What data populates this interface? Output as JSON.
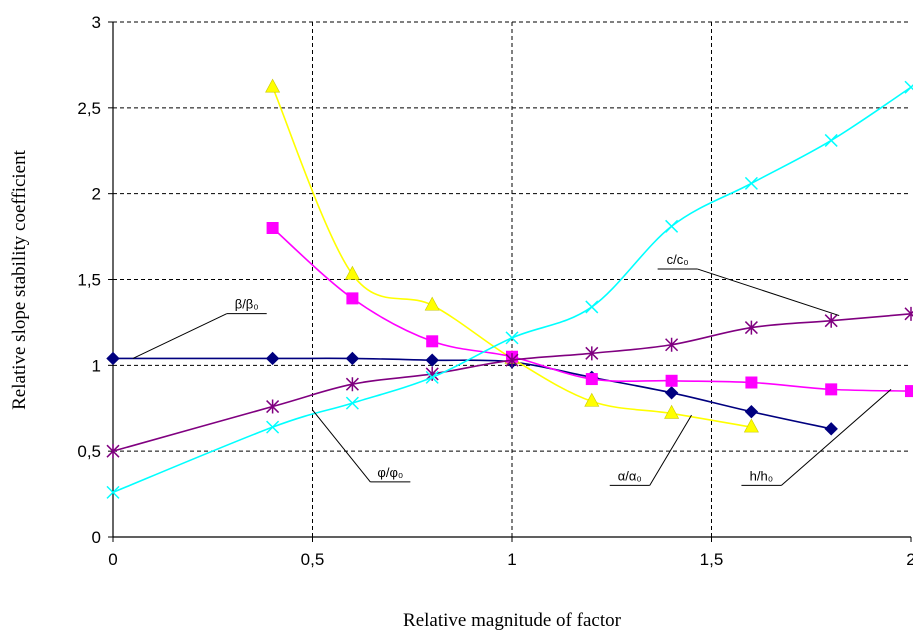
{
  "chart_data": {
    "type": "line",
    "title": "",
    "xlabel": "Relative magnitude of factor",
    "ylabel": "Relative slope stability coefficient",
    "xlim": [
      0,
      2
    ],
    "ylim": [
      0,
      3
    ],
    "grid": true,
    "x_ticks": [
      "0",
      "0,5",
      "1",
      "1,5",
      "2"
    ],
    "y_ticks": [
      "0",
      "0,5",
      "1",
      "1,5",
      "2",
      "2,5",
      "3"
    ],
    "series": [
      {
        "name": "β/β₀",
        "color": "#00007f",
        "marker": "diamond",
        "x": [
          0,
          0.4,
          0.6,
          0.8,
          1.0,
          1.2,
          1.4,
          1.6,
          1.8
        ],
        "y": [
          1.04,
          1.04,
          1.04,
          1.03,
          1.02,
          0.93,
          0.84,
          0.73,
          0.63
        ]
      },
      {
        "name": "α/α₀",
        "color": "#ffff00",
        "marker": "triangle",
        "x": [
          0.4,
          0.6,
          0.8,
          1.0,
          1.2,
          1.4,
          1.6
        ],
        "y": [
          2.62,
          1.53,
          1.35,
          1.04,
          0.79,
          0.72,
          0.64
        ]
      },
      {
        "name": "h/h₀",
        "color": "#ff00ff",
        "marker": "square",
        "x": [
          0.4,
          0.6,
          0.8,
          1.0,
          1.2,
          1.4,
          1.6,
          1.8,
          2.0
        ],
        "y": [
          1.8,
          1.39,
          1.14,
          1.05,
          0.92,
          0.91,
          0.9,
          0.86,
          0.85
        ]
      },
      {
        "name": "c/c₀",
        "color": "#800080",
        "marker": "asterisk",
        "x": [
          0,
          0.4,
          0.6,
          0.8,
          1.0,
          1.2,
          1.4,
          1.6,
          1.8,
          2.0
        ],
        "y": [
          0.5,
          0.76,
          0.89,
          0.95,
          1.03,
          1.07,
          1.12,
          1.22,
          1.26,
          1.3
        ]
      },
      {
        "name": "φ/φ₀",
        "color": "#00ffff",
        "marker": "x",
        "x": [
          0,
          0.4,
          0.6,
          0.8,
          1.0,
          1.2,
          1.4,
          1.6,
          1.8,
          2.0
        ],
        "y": [
          0.26,
          0.64,
          0.78,
          0.93,
          1.16,
          1.34,
          1.81,
          2.06,
          2.31,
          2.62
        ]
      }
    ],
    "annotations": [
      {
        "text": "β/β₀",
        "series": "β/β₀",
        "point": [
          0.05,
          1.04
        ],
        "label_at": [
          0.29,
          1.33
        ]
      },
      {
        "text": "φ/φ₀",
        "series": "φ/φ₀",
        "point": [
          0.5,
          0.74
        ],
        "label_at": [
          0.65,
          0.35
        ]
      },
      {
        "text": "α/α₀",
        "series": "α/α₀",
        "point": [
          1.45,
          0.71
        ],
        "label_at": [
          1.25,
          0.33
        ]
      },
      {
        "text": "h/h₀",
        "series": "h/h₀",
        "point": [
          1.95,
          0.86
        ],
        "label_at": [
          1.58,
          0.33
        ]
      },
      {
        "text": "c/c₀",
        "series": "c/c₀",
        "point": [
          1.82,
          1.29
        ],
        "label_at": [
          1.37,
          1.59
        ]
      }
    ]
  }
}
